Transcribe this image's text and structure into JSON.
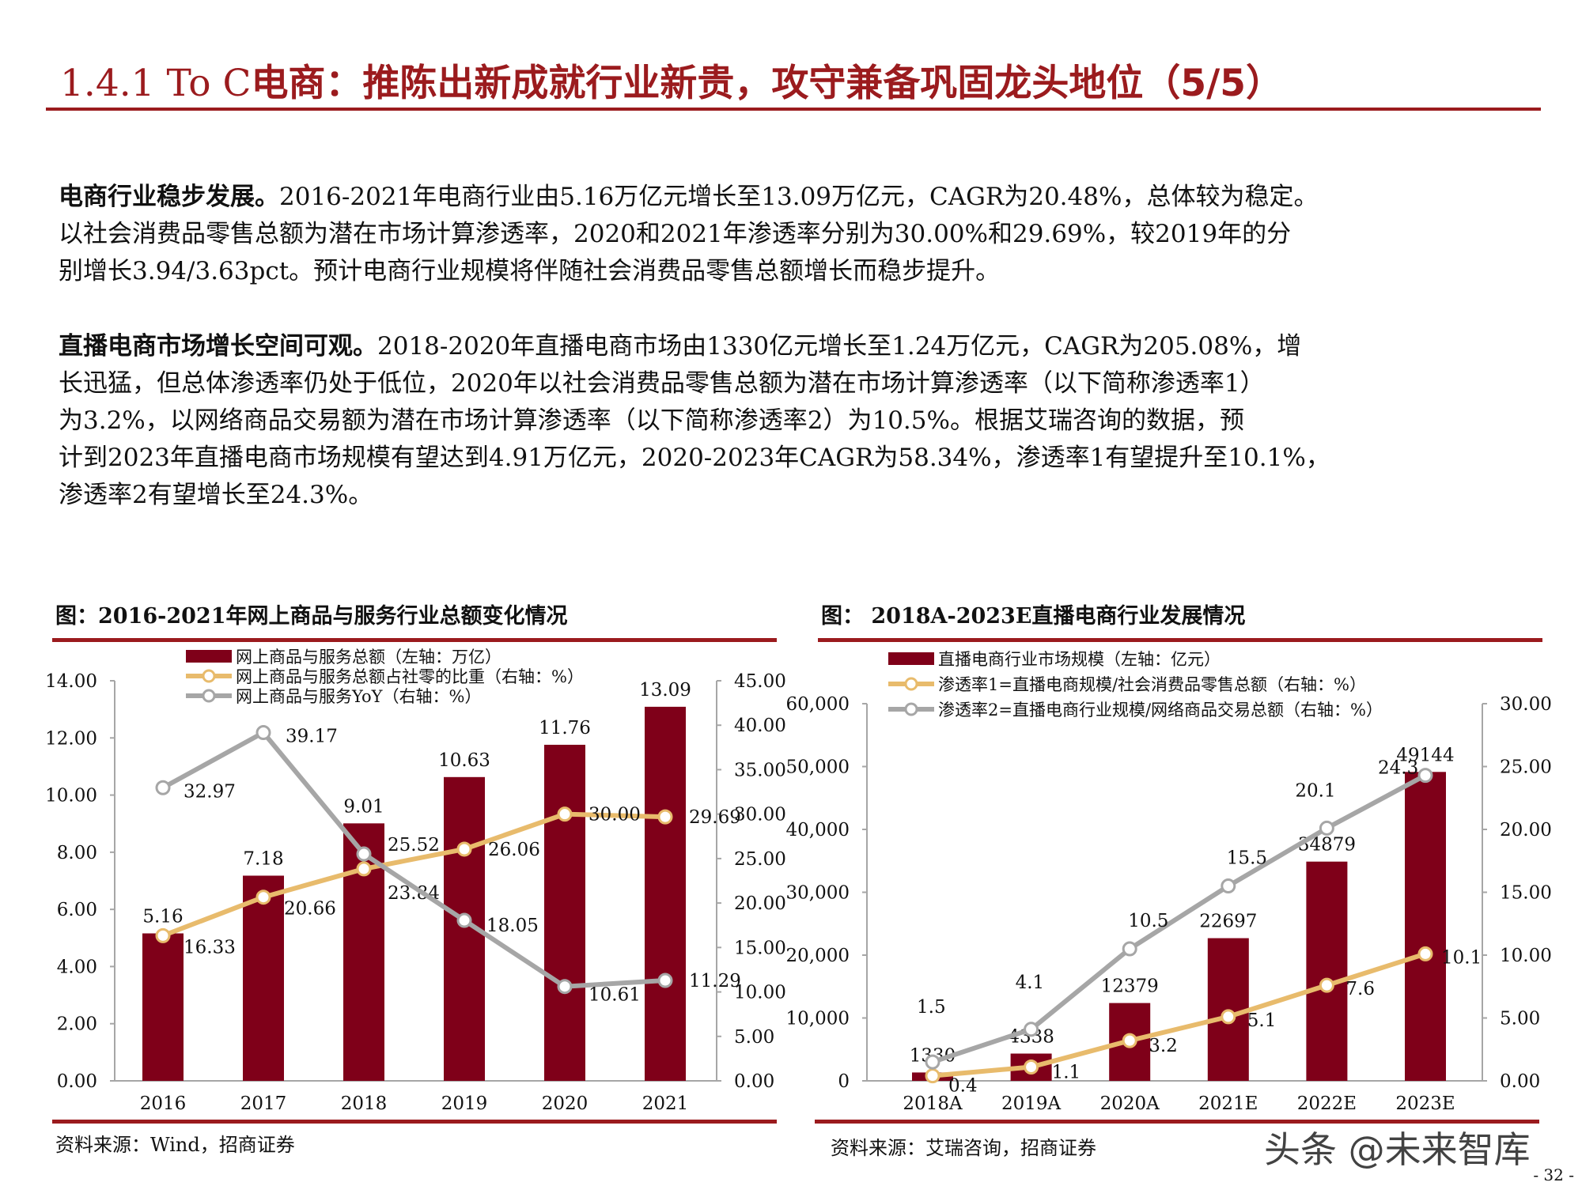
{
  "header": {
    "title_num": "1.4.1",
    "title_en": " To C",
    "title_cn": "电商：推陈出新成就行业新贵，攻守兼备巩固龙头地位（5/5）"
  },
  "paragraphs": [
    {
      "lead": "电商行业稳步发展。",
      "lines": [
        "2016-2021年电商行业由5.16万亿元增长至13.09万亿元，CAGR为20.48%，总体较为稳定。",
        "以社会消费品零售总额为潜在市场计算渗透率，2020和2021年渗透率分别为30.00%和29.69%，较2019年的分",
        "别增长3.94/3.63pct。预计电商行业规模将伴随社会消费品零售总额增长而稳步提升。"
      ]
    },
    {
      "lead": "直播电商市场增长空间可观。",
      "lines": [
        "2018-2020年直播电商市场由1330亿元增长至1.24万亿元，CAGR为205.08%，增",
        "长迅猛，但总体渗透率仍处于低位，2020年以社会消费品零售总额为潜在市场计算渗透率（以下简称渗透率1）",
        "为3.2%，以网络商品交易额为潜在市场计算渗透率（以下简称渗透率2）为10.5%。根据艾瑞咨询的数据，预",
        "计到2023年直播电商市场规模有望达到4.91万亿元，2020-2023年CAGR为58.34%，渗透率1有望提升至10.1%，",
        "渗透率2有望增长至24.3%。"
      ]
    }
  ],
  "colors": {
    "accent": "#9b1b1e",
    "bar": "#7f0019",
    "line_orange": "#e8bb6c",
    "line_gray": "#a6a6a6"
  },
  "chart_data": [
    {
      "type": "bar+line",
      "title": "图：2016-2021年网上商品与服务行业总额变化情况",
      "source": "资料来源：Wind，招商证券",
      "categories": [
        "2016",
        "2017",
        "2018",
        "2019",
        "2020",
        "2021"
      ],
      "left_axis": {
        "range": [
          0,
          14
        ],
        "ticks": [
          "0.00",
          "2.00",
          "4.00",
          "6.00",
          "8.00",
          "10.00",
          "12.00",
          "14.00"
        ]
      },
      "right_axis": {
        "range": [
          0,
          45
        ],
        "ticks": [
          "0.00",
          "5.00",
          "10.00",
          "15.00",
          "20.00",
          "25.00",
          "30.00",
          "35.00",
          "40.00",
          "45.00"
        ]
      },
      "series": [
        {
          "name": "网上商品与服务总额（左轴：万亿）",
          "kind": "bar",
          "axis": "left",
          "values": [
            5.16,
            7.18,
            9.01,
            10.63,
            11.76,
            13.09
          ],
          "labels": [
            "5.16",
            "7.18",
            "9.01",
            "10.63",
            "11.76",
            "13.09"
          ]
        },
        {
          "name": "网上商品与服务总额占社零的比重（右轴：%）",
          "kind": "line",
          "axis": "right",
          "color": "orange",
          "values": [
            16.33,
            20.66,
            23.84,
            26.06,
            30.0,
            29.69
          ],
          "labels": [
            "16.33",
            "20.66",
            "23.84",
            "26.06",
            "30.00",
            "29.69"
          ]
        },
        {
          "name": "网上商品与服务YoY（右轴：%）",
          "kind": "line",
          "axis": "right",
          "color": "gray",
          "values": [
            32.97,
            39.17,
            25.52,
            18.05,
            10.61,
            11.29
          ],
          "labels": [
            "32.97",
            "39.17",
            "25.52",
            "18.05",
            "10.61",
            "11.29"
          ]
        }
      ],
      "legend": "top"
    },
    {
      "type": "bar+line",
      "title": "图： 2018A-2023E直播电商行业发展情况",
      "source": "资料来源：艾瑞咨询，招商证券",
      "categories": [
        "2018A",
        "2019A",
        "2020A",
        "2021E",
        "2022E",
        "2023E"
      ],
      "left_axis": {
        "range": [
          0,
          60000
        ],
        "ticks": [
          "0",
          "10,000",
          "20,000",
          "30,000",
          "40,000",
          "50,000",
          "60,000"
        ]
      },
      "right_axis": {
        "range": [
          0,
          30
        ],
        "ticks": [
          "0.00",
          "5.00",
          "10.00",
          "15.00",
          "20.00",
          "25.00",
          "30.00"
        ]
      },
      "series": [
        {
          "name": "直播电商行业市场规模（左轴：亿元）",
          "kind": "bar",
          "axis": "left",
          "values": [
            1330,
            4338,
            12379,
            22697,
            34879,
            49144
          ],
          "labels": [
            "1330",
            "4338",
            "12379",
            "22697",
            "34879",
            "49144"
          ]
        },
        {
          "name": "渗透率1=直播电商规模/社会消费品零售总额（右轴：%）",
          "kind": "line",
          "axis": "right",
          "color": "orange",
          "values": [
            0.4,
            1.1,
            3.2,
            5.1,
            7.6,
            10.1
          ],
          "labels": [
            "0.4",
            "1.1",
            "3.2",
            "5.1",
            "7.6",
            "10.1"
          ]
        },
        {
          "name": "渗透率2=直播电商行业规模/网络商品交易总额（右轴：%）",
          "kind": "line",
          "axis": "right",
          "color": "gray",
          "values": [
            1.5,
            4.1,
            10.5,
            15.5,
            20.1,
            24.3
          ],
          "labels": [
            "1.5",
            "4.1",
            "10.5",
            "15.5",
            "20.1",
            "24.3"
          ]
        }
      ],
      "legend": "top"
    }
  ],
  "watermark": "头条 @未来智库",
  "page_number": "- 32 -"
}
